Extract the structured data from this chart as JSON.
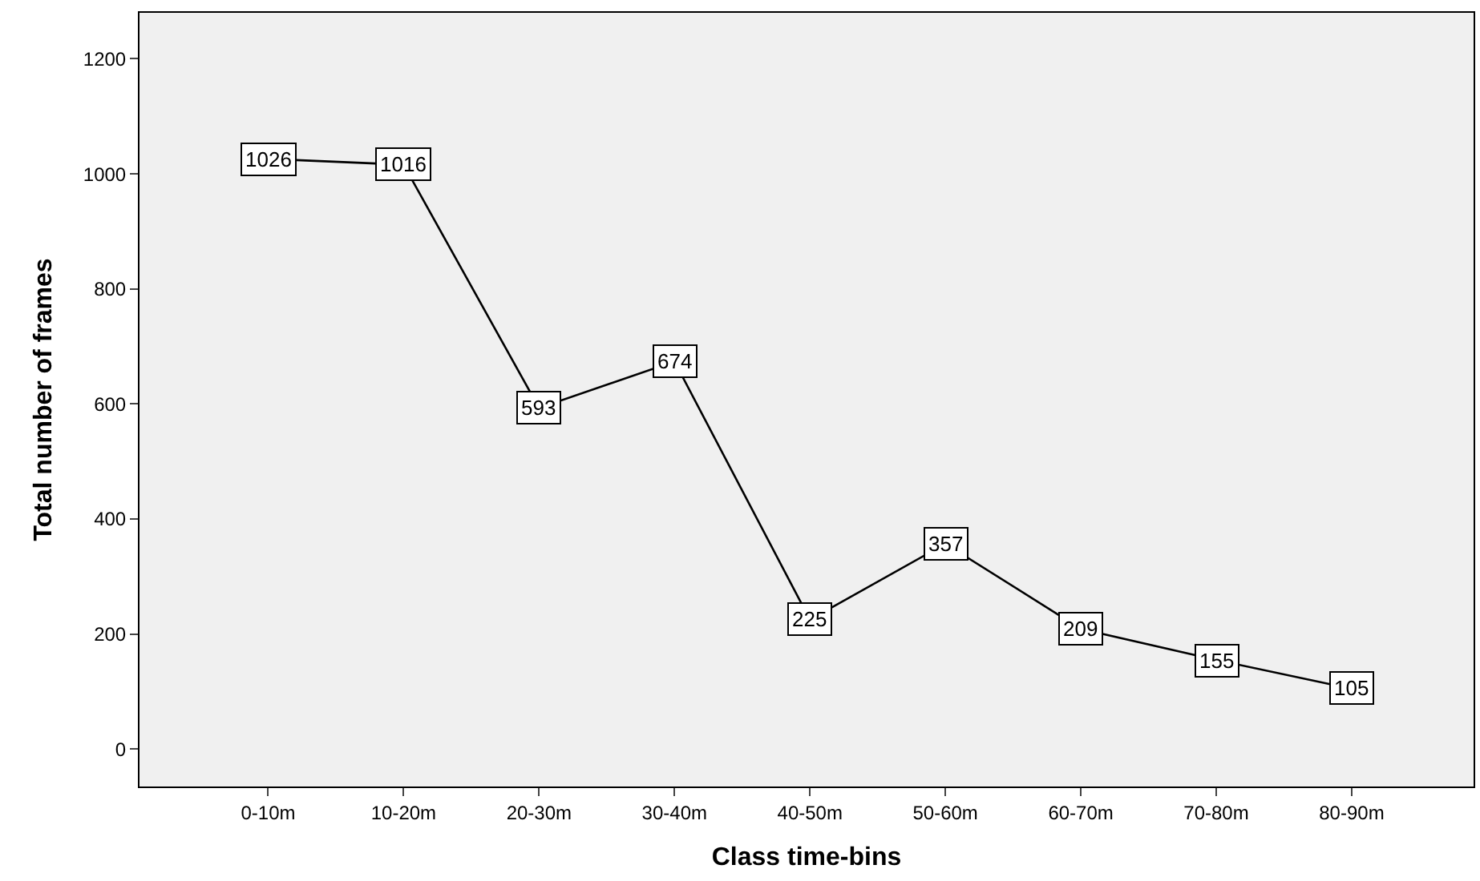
{
  "chart_data": {
    "type": "line",
    "xlabel": "Class time-bins",
    "ylabel": "Total number of frames",
    "categories": [
      "0-10m",
      "10-20m",
      "20-30m",
      "30-40m",
      "40-50m",
      "50-60m",
      "60-70m",
      "70-80m",
      "80-90m"
    ],
    "series": [
      {
        "color": "#000000",
        "values": [
          1026,
          1016,
          593,
          674,
          225,
          357,
          209,
          155,
          105
        ]
      }
    ],
    "ylim": [
      -65,
      1280
    ],
    "yticks": [
      0,
      200,
      400,
      600,
      800,
      1000,
      1200
    ],
    "data_labels": true,
    "grid": false,
    "legend": false,
    "marker": "square",
    "line_style": "solid"
  }
}
